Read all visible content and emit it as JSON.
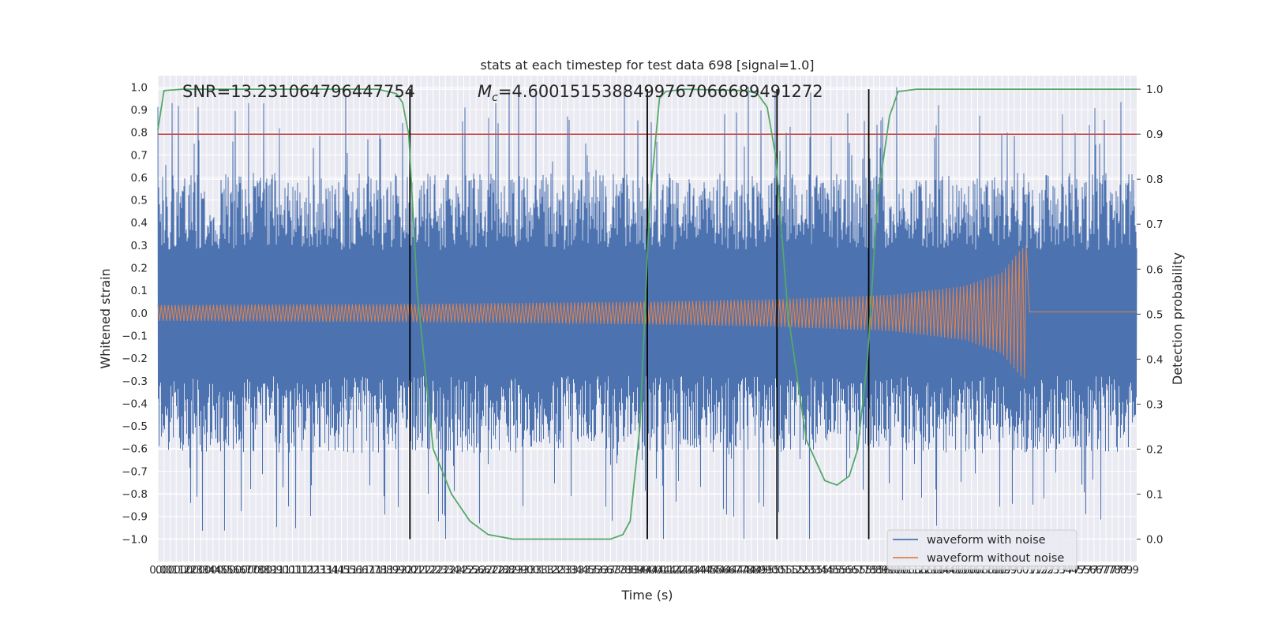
{
  "chart_data": {
    "type": "line",
    "title": "stats at each timestep for test data 698 [signal=1.0]",
    "xlabel": "Time (s)",
    "ylabel": "Whitened strain",
    "y2label": "Detection probability",
    "xlim": [
      0,
      8
    ],
    "ylim": [
      -1.1,
      1.05
    ],
    "y2lim": [
      -0.05,
      1.03
    ],
    "x_tick_step": 0.05,
    "y_ticks": [
      -1.0,
      -0.9,
      -0.8,
      -0.7,
      -0.6,
      -0.5,
      -0.4,
      -0.3,
      -0.2,
      -0.1,
      0.0,
      0.1,
      0.2,
      0.3,
      0.4,
      0.5,
      0.6,
      0.7,
      0.8,
      0.9,
      1.0
    ],
    "y2_ticks": [
      0.0,
      0.1,
      0.2,
      0.3,
      0.4,
      0.5,
      0.6,
      0.7,
      0.8,
      0.9,
      1.0
    ],
    "annotations": {
      "snr": "SNR=13.231064796447754",
      "mc_symbol": "M",
      "mc_sub": "c",
      "mc_value": "=4.6001515388499767066689491272"
    },
    "threshold": 0.9,
    "vertical_lines_x": [
      2.06,
      4.0,
      5.06,
      5.81
    ],
    "series": [
      {
        "name": "waveform with noise",
        "color": "#4c72b0",
        "envelope": {
          "typical_amplitude": 0.62,
          "max": 1.0,
          "min": -1.0
        }
      },
      {
        "name": "waveform without noise",
        "color": "#dd8452",
        "envelope_x": [
          0,
          1,
          2,
          3,
          4,
          5,
          6,
          6.6,
          6.9,
          7.05,
          7.1,
          7.12,
          8.0
        ],
        "envelope_amp": [
          0.035,
          0.038,
          0.04,
          0.045,
          0.05,
          0.06,
          0.08,
          0.12,
          0.18,
          0.28,
          0.3,
          0.005,
          0.005
        ]
      },
      {
        "name": "detection probability",
        "color": "#55a868",
        "axis": "right",
        "x": [
          0,
          0.05,
          0.2,
          1.0,
          1.8,
          1.95,
          2.0,
          2.05,
          2.12,
          2.25,
          2.4,
          2.55,
          2.7,
          2.9,
          3.5,
          3.7,
          3.8,
          3.86,
          3.94,
          4.02,
          4.1,
          4.15,
          4.3,
          4.8,
          4.9,
          4.98,
          5.05,
          5.15,
          5.3,
          5.45,
          5.55,
          5.65,
          5.72,
          5.8,
          5.88,
          5.98,
          6.05,
          6.2,
          7.0,
          8.0
        ],
        "y": [
          0.91,
          0.997,
          1.0,
          1.0,
          1.0,
          0.99,
          0.97,
          0.9,
          0.55,
          0.2,
          0.1,
          0.04,
          0.01,
          0.0,
          0.0,
          0.0,
          0.01,
          0.04,
          0.25,
          0.75,
          0.98,
          0.995,
          1.0,
          0.997,
          0.99,
          0.96,
          0.85,
          0.5,
          0.22,
          0.13,
          0.12,
          0.14,
          0.2,
          0.4,
          0.75,
          0.94,
          0.995,
          1.0,
          1.0,
          1.0
        ]
      }
    ],
    "threshold_color": "#c44e52",
    "legend_position": "lower right"
  }
}
